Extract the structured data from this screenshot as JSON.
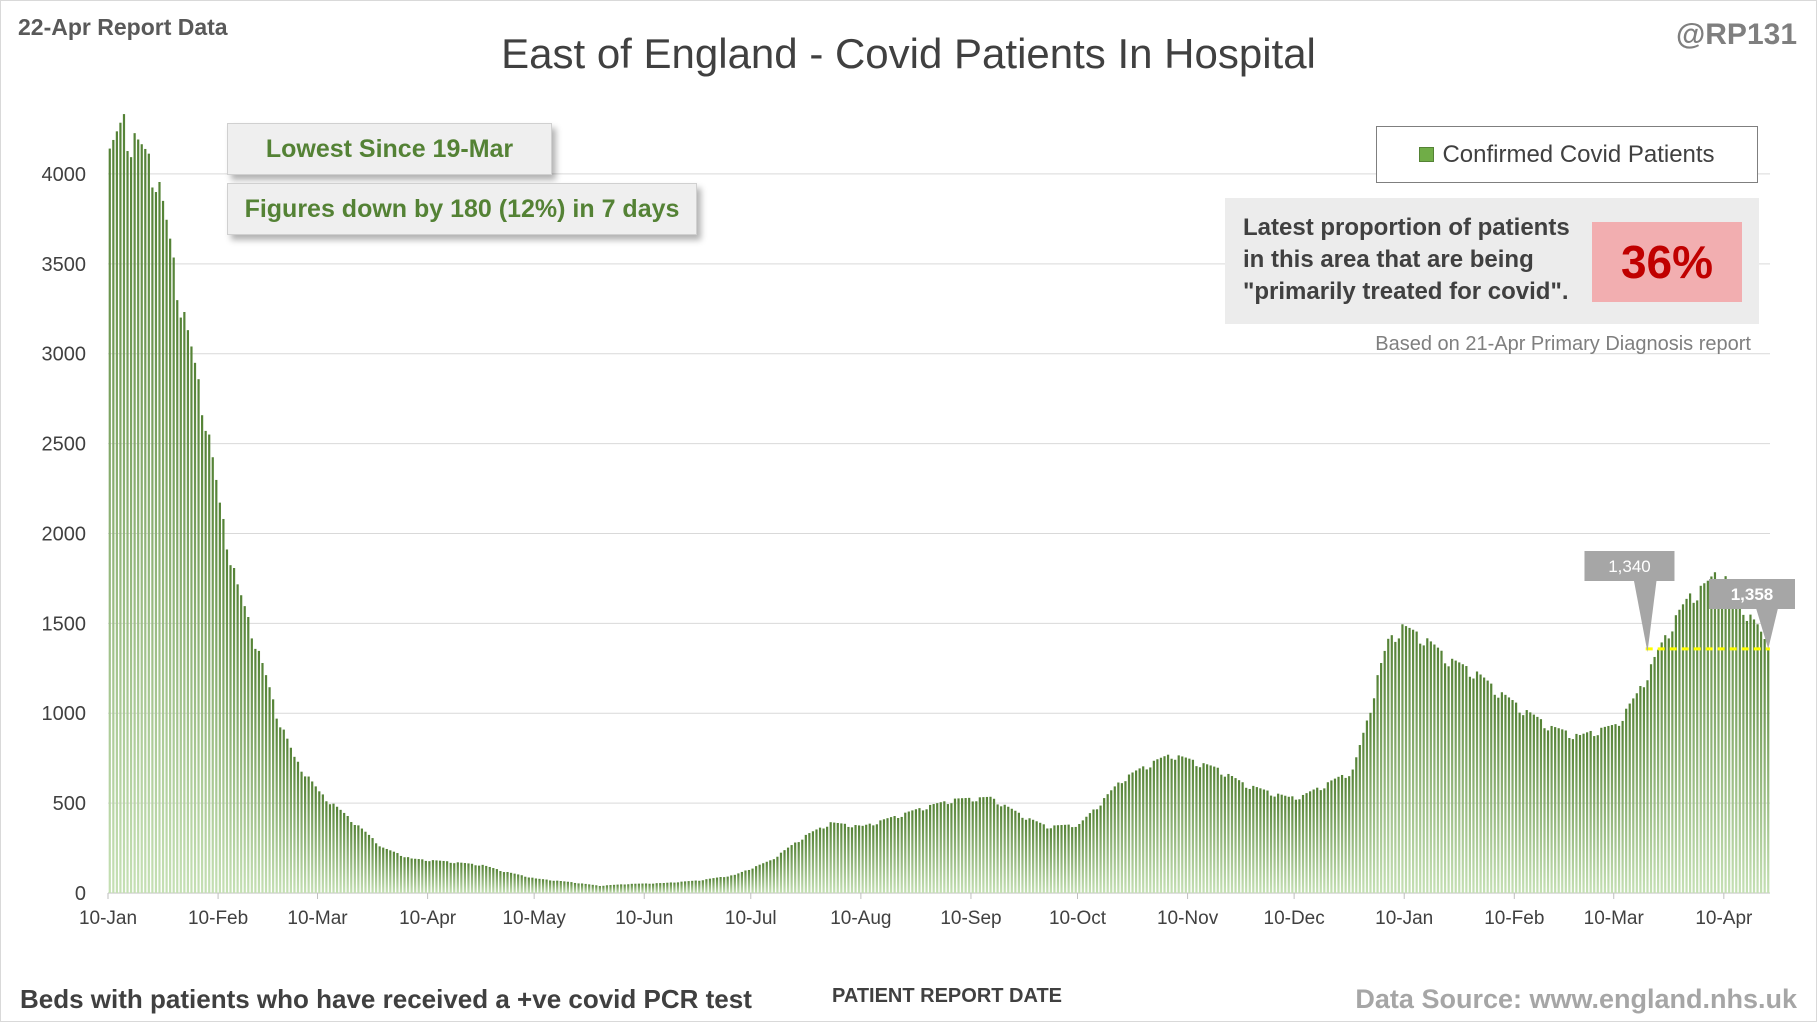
{
  "header": {
    "report_label": "22-Apr Report Data",
    "handle": "@RP131"
  },
  "callouts": {
    "lowest": "Lowest Since 19-Mar",
    "change": "Figures down by 180 (12%) in 7 days"
  },
  "proportion_panel": {
    "text": "Latest proportion of patients in this area that are being \"primarily treated for covid\".",
    "value": "36%",
    "note": "Based on 21-Apr Primary Diagnosis report"
  },
  "footer": {
    "left": "Beds with patients who have received a +ve covid PCR test",
    "right": "Data Source: www.england.nhs.uk"
  },
  "colors": {
    "bar_top": "#548235",
    "bar_bottom": "#c5e0b4",
    "reference_line": "#ffff00",
    "value_label_bg": "#a6a6a6",
    "proportion_highlight": "#f2aeb0",
    "proportion_value": "#c00000",
    "callout_text": "#548235"
  },
  "chart_data": {
    "type": "bar",
    "title": "East of England - Covid Patients In Hospital",
    "xlabel": "PATIENT REPORT DATE",
    "ylabel": "",
    "ylim": [
      0,
      4300
    ],
    "yticks": [
      0,
      500,
      1000,
      1500,
      2000,
      2500,
      3000,
      3500,
      4000
    ],
    "grid": true,
    "legend": {
      "position": "top-right",
      "entries": [
        "Confirmed Covid Patients"
      ]
    },
    "x_start": "10-Jan",
    "x_end": "22-Apr",
    "x_tick_labels": [
      "10-Jan",
      "10-Feb",
      "10-Mar",
      "10-Apr",
      "10-May",
      "10-Jun",
      "10-Jul",
      "10-Aug",
      "10-Sep",
      "10-Oct",
      "10-Nov",
      "10-Dec",
      "10-Jan",
      "10-Feb",
      "10-Mar",
      "10-Apr"
    ],
    "x_tick_dates": [
      "2021-01-10",
      "2021-02-10",
      "2021-03-10",
      "2021-04-10",
      "2021-05-10",
      "2021-06-10",
      "2021-07-10",
      "2021-08-10",
      "2021-09-10",
      "2021-10-10",
      "2021-11-10",
      "2021-12-10",
      "2022-01-10",
      "2022-02-10",
      "2022-03-10",
      "2022-04-10"
    ],
    "series": [
      {
        "name": "Confirmed Covid Patients",
        "start_date": "2021-01-10",
        "keypoints": [
          [
            "2021-01-10",
            4100
          ],
          [
            "2021-01-14",
            4290
          ],
          [
            "2021-01-18",
            4150
          ],
          [
            "2021-01-23",
            4020
          ],
          [
            "2021-01-28",
            3500
          ],
          [
            "2021-02-01",
            3100
          ],
          [
            "2021-02-06",
            2650
          ],
          [
            "2021-02-10",
            2150
          ],
          [
            "2021-02-15",
            1700
          ],
          [
            "2021-02-20",
            1400
          ],
          [
            "2021-02-26",
            1000
          ],
          [
            "2021-03-03",
            750
          ],
          [
            "2021-03-10",
            560
          ],
          [
            "2021-03-20",
            390
          ],
          [
            "2021-03-28",
            250
          ],
          [
            "2021-04-05",
            190
          ],
          [
            "2021-04-15",
            175
          ],
          [
            "2021-04-25",
            155
          ],
          [
            "2021-05-01",
            120
          ],
          [
            "2021-05-10",
            80
          ],
          [
            "2021-05-20",
            60
          ],
          [
            "2021-05-28",
            40
          ],
          [
            "2021-06-05",
            50
          ],
          [
            "2021-06-15",
            55
          ],
          [
            "2021-06-25",
            70
          ],
          [
            "2021-07-05",
            100
          ],
          [
            "2021-07-15",
            180
          ],
          [
            "2021-07-25",
            320
          ],
          [
            "2021-08-01",
            390
          ],
          [
            "2021-08-10",
            370
          ],
          [
            "2021-08-20",
            430
          ],
          [
            "2021-08-28",
            480
          ],
          [
            "2021-09-05",
            520
          ],
          [
            "2021-09-15",
            530
          ],
          [
            "2021-09-25",
            420
          ],
          [
            "2021-10-01",
            370
          ],
          [
            "2021-10-10",
            380
          ],
          [
            "2021-10-15",
            480
          ],
          [
            "2021-10-22",
            630
          ],
          [
            "2021-10-30",
            720
          ],
          [
            "2021-11-05",
            770
          ],
          [
            "2021-11-10",
            740
          ],
          [
            "2021-11-18",
            690
          ],
          [
            "2021-11-25",
            610
          ],
          [
            "2021-12-01",
            570
          ],
          [
            "2021-12-08",
            530
          ],
          [
            "2021-12-12",
            540
          ],
          [
            "2021-12-20",
            620
          ],
          [
            "2021-12-26",
            680
          ],
          [
            "2021-12-30",
            950
          ],
          [
            "2022-01-02",
            1200
          ],
          [
            "2022-01-05",
            1400
          ],
          [
            "2022-01-09",
            1480
          ],
          [
            "2022-01-15",
            1420
          ],
          [
            "2022-01-22",
            1300
          ],
          [
            "2022-01-30",
            1220
          ],
          [
            "2022-02-05",
            1120
          ],
          [
            "2022-02-12",
            1020
          ],
          [
            "2022-02-20",
            920
          ],
          [
            "2022-02-28",
            870
          ],
          [
            "2022-03-04",
            900
          ],
          [
            "2022-03-10",
            930
          ],
          [
            "2022-03-16",
            1100
          ],
          [
            "2022-03-22",
            1340
          ],
          [
            "2022-03-26",
            1500
          ],
          [
            "2022-03-31",
            1650
          ],
          [
            "2022-04-05",
            1720
          ],
          [
            "2022-04-08",
            1790
          ],
          [
            "2022-04-12",
            1700
          ],
          [
            "2022-04-16",
            1560
          ],
          [
            "2022-04-19",
            1480
          ],
          [
            "2022-04-22",
            1358
          ]
        ]
      }
    ],
    "annotations": [
      {
        "label": "1,340",
        "date": "2022-03-19",
        "value": 1340
      },
      {
        "label": "1,358",
        "date": "2022-04-22",
        "value": 1358
      }
    ],
    "reference_line": {
      "value": 1358,
      "from": "2022-03-19",
      "to": "2022-04-22"
    }
  }
}
